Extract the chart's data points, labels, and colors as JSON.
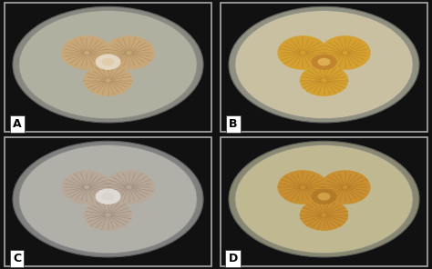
{
  "figure_bg": "#111111",
  "panel_bg": "#111111",
  "labels": [
    "A",
    "B",
    "C",
    "D"
  ],
  "label_color": "#000000",
  "label_bg": "#ffffff",
  "label_fontsize": 9,
  "label_fontweight": "bold",
  "border_color": "#aaaaaa",
  "border_linewidth": 1.0,
  "dish_colors": {
    "A": {
      "bg": "#1a1a1a",
      "plate_outer": "#888880",
      "plate_inner": "#b0b0a0",
      "colony_base": "#c8a878",
      "colony_dark": "#a08050",
      "colony_light": "#e0c8a0",
      "center_white": "#e8e0d0",
      "radial_color": "#806040"
    },
    "B": {
      "bg": "#1a1a18",
      "plate_outer": "#909080",
      "plate_inner": "#c8c0a0",
      "colony_base": "#d4a030",
      "colony_dark": "#a07020",
      "colony_light": "#e8c060",
      "center_white": "#c08030",
      "radial_color": "#906020"
    },
    "C": {
      "bg": "#181818",
      "plate_outer": "#808080",
      "plate_inner": "#b0b0a8",
      "colony_base": "#b8a898",
      "colony_dark": "#907870",
      "colony_light": "#d8d0c8",
      "center_white": "#e8e4e0",
      "radial_color": "#706060"
    },
    "D": {
      "bg": "#181810",
      "plate_outer": "#888870",
      "plate_inner": "#c0b890",
      "colony_base": "#c89030",
      "colony_dark": "#a07020",
      "colony_light": "#e0b050",
      "center_white": "#b07828",
      "radial_color": "#905020"
    }
  },
  "figsize": [
    4.74,
    2.96
  ],
  "dpi": 100
}
